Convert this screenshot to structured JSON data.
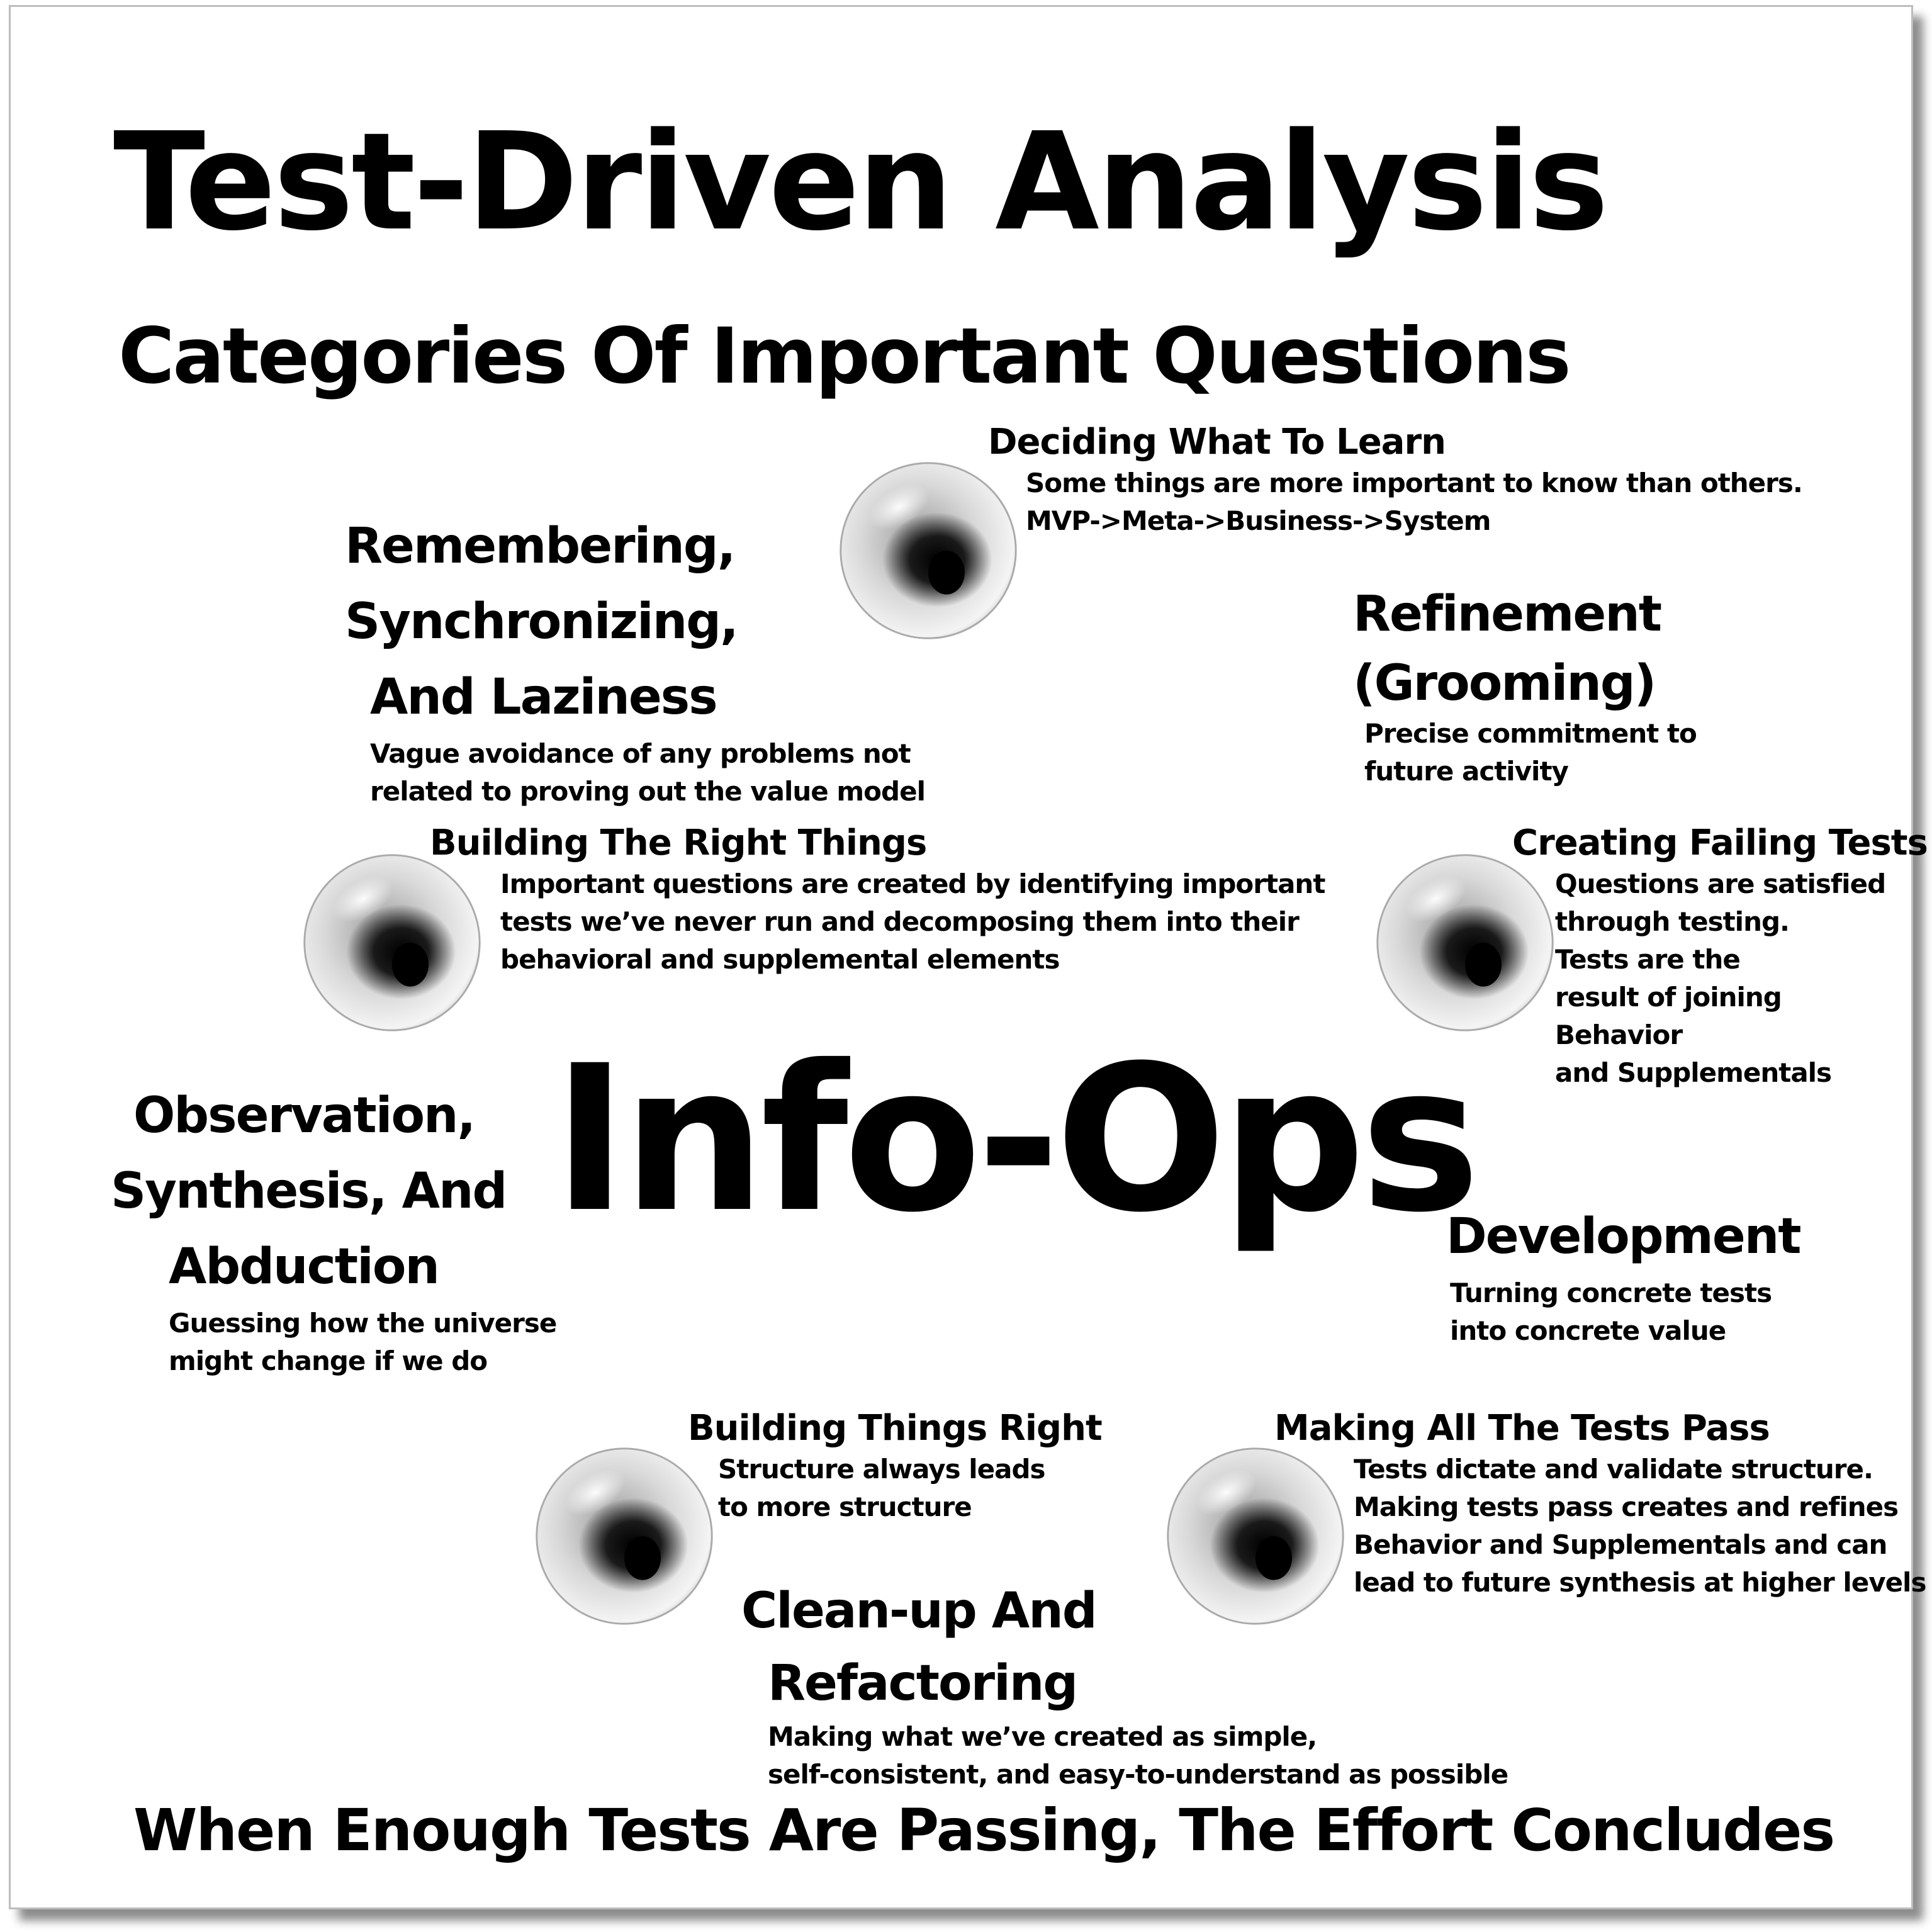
{
  "title": "Test-Driven Analysis",
  "subtitle": "Categories Of Important Questions",
  "center_label": "Info-Ops",
  "footer": "When Enough Tests Are Passing, The Effort Concludes",
  "categories": {
    "deciding": {
      "heading": "Deciding What To Learn",
      "lines": [
        "Some things are more important to know than others.",
        "MVP->Meta->Business->System"
      ]
    },
    "remembering": {
      "heading_lines": [
        "Remembering,",
        "Synchronizing,",
        "And Laziness"
      ],
      "lines": [
        "Vague avoidance of any problems not",
        "related to proving out the value model"
      ]
    },
    "refinement": {
      "heading_lines": [
        "Refinement",
        "(Grooming)"
      ],
      "lines": [
        "Precise commitment to",
        "future activity"
      ]
    },
    "building_right_things": {
      "heading": "Building The Right Things",
      "lines": [
        "Important questions are created by identifying important",
        "tests we’ve never run and decomposing them into their",
        "behavioral and supplemental elements"
      ]
    },
    "creating_failing_tests": {
      "heading": "Creating Failing Tests",
      "lines": [
        "Questions are satisfied",
        "through testing.",
        "Tests are the",
        "result of joining",
        "Behavior",
        "and Supplementals"
      ]
    },
    "observation": {
      "heading_lines": [
        "Observation,",
        "Synthesis, And",
        "Abduction"
      ],
      "lines": [
        "Guessing how the universe",
        "might change if we do"
      ]
    },
    "development": {
      "heading": "Development",
      "lines": [
        "Turning concrete tests",
        "into concrete value"
      ]
    },
    "building_things_right": {
      "heading": "Building Things Right",
      "lines": [
        "Structure always leads",
        "to more structure"
      ]
    },
    "making_tests_pass": {
      "heading": "Making All The Tests Pass",
      "lines": [
        "Tests dictate and validate structure.",
        "Making tests pass creates and refines",
        "Behavior and Supplementals and can",
        "lead to future synthesis at higher levels"
      ]
    },
    "cleanup": {
      "heading_lines": [
        "Clean-up And",
        "Refactoring"
      ],
      "lines": [
        "Making what we’ve created as simple,",
        "self-consistent, and easy-to-understand as possible"
      ]
    }
  }
}
